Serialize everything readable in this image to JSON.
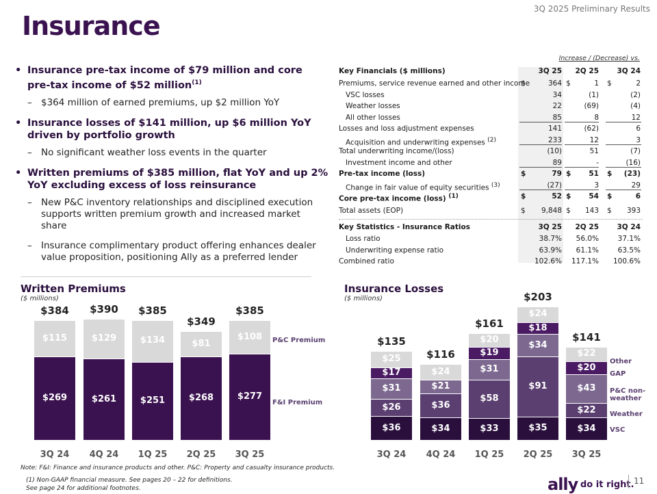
{
  "header": {
    "results_label": "3Q 2025 Preliminary Results",
    "title": "Insurance"
  },
  "bullets": [
    {
      "text": "Insurance pre-tax income of $79 million and core pre-tax income of $52 million",
      "sup": "(1)",
      "subs": [
        "$364 million of earned premiums, up $2 million YoY"
      ]
    },
    {
      "text": "Insurance losses of $141 million, up $6 million YoY driven by portfolio growth",
      "sup": "",
      "subs": [
        "No significant weather loss events in the quarter"
      ]
    },
    {
      "text": "Written premiums of $385 million, flat YoY and up 2% YoY excluding excess of loss reinsurance",
      "sup": "",
      "subs": [
        "New P&C inventory relationships and disciplined execution supports written premium growth and increased market share",
        "Insurance complimentary product offering enhances dealer value proposition, positioning Ally as a preferred lender"
      ]
    }
  ],
  "table": {
    "inc_label": "Increase / (Decrease) vs.",
    "fin_header": {
      "label": "Key Financials ($ millions)",
      "c1": "3Q 25",
      "c2": "2Q 25",
      "c3": "3Q 24"
    },
    "fin_rows": [
      {
        "label": "Premiums, service revenue earned and other income",
        "c1": "364",
        "c2": "1",
        "c3": "2",
        "cur": true,
        "ind": false,
        "bold": false,
        "sup": ""
      },
      {
        "label": "VSC losses",
        "c1": "34",
        "c2": "(1)",
        "c3": "(2)",
        "cur": false,
        "ind": true,
        "bold": false,
        "sup": ""
      },
      {
        "label": "Weather losses",
        "c1": "22",
        "c2": "(69)",
        "c3": "(4)",
        "cur": false,
        "ind": true,
        "bold": false,
        "sup": ""
      },
      {
        "label": "All other losses",
        "c1": "85",
        "c2": "8",
        "c3": "12",
        "cur": false,
        "ind": true,
        "bold": false,
        "sup": ""
      },
      {
        "label": "Losses and loss adjustment expenses",
        "c1": "141",
        "c2": "(62)",
        "c3": "6",
        "cur": false,
        "ind": false,
        "bold": false,
        "sup": ""
      },
      {
        "label": "Acquisition and underwriting expenses",
        "c1": "233",
        "c2": "12",
        "c3": "3",
        "cur": false,
        "ind": true,
        "bold": false,
        "sup": "(2)"
      },
      {
        "label": "Total underwriting income/(loss)",
        "c1": "(10)",
        "c2": "51",
        "c3": "(7)",
        "cur": false,
        "ind": false,
        "bold": false,
        "sup": ""
      },
      {
        "label": "Investment income and other",
        "c1": "89",
        "c2": "-",
        "c3": "(16)",
        "cur": false,
        "ind": true,
        "bold": false,
        "sup": ""
      },
      {
        "label": "Pre-tax income (loss)",
        "c1": "79",
        "c2": "51",
        "c3": "(23)",
        "cur": true,
        "ind": false,
        "bold": true,
        "sup": ""
      },
      {
        "label": "Change in fair value of equity securities",
        "c1": "(27)",
        "c2": "3",
        "c3": "29",
        "cur": false,
        "ind": true,
        "bold": false,
        "sup": "(3)"
      },
      {
        "label": "Core pre-tax income (loss)",
        "c1": "52",
        "c2": "54",
        "c3": "6",
        "cur": true,
        "ind": false,
        "bold": true,
        "sup": "(1)"
      },
      {
        "label": "Total assets (EOP)",
        "c1": "9,848",
        "c2": "143",
        "c3": "393",
        "cur": true,
        "ind": false,
        "bold": false,
        "sup": ""
      }
    ],
    "stat_header": {
      "label": "Key Statistics - Insurance Ratios",
      "c1": "3Q 25",
      "c2": "2Q 25",
      "c3": "3Q 24"
    },
    "stat_rows": [
      {
        "label": "Loss ratio",
        "c1": "38.7%",
        "c2": "56.0%",
        "c3": "37.1%",
        "ind": true
      },
      {
        "label": "Underwriting expense ratio",
        "c1": "63.9%",
        "c2": "61.1%",
        "c3": "63.5%",
        "ind": true
      },
      {
        "label": "Combined ratio",
        "c1": "102.6%",
        "c2": "117.1%",
        "c3": "100.6%",
        "ind": false
      }
    ],
    "currency_symbol": "$"
  },
  "written": {
    "title": "Written Premiums",
    "subtitle": "($ millions)",
    "legend_pc": "P&C Premium",
    "legend_fi": "F&I Premium"
  },
  "losses": {
    "title": "Insurance Losses",
    "subtitle": "($ millions)",
    "legend": [
      "Other",
      "GAP",
      "P&C non-weather",
      "Weather",
      "VSC"
    ]
  },
  "chart_data": [
    {
      "type": "bar",
      "stacked": true,
      "title": "Written Premiums",
      "ylabel": "($ millions)",
      "categories": [
        "3Q 24",
        "4Q 24",
        "1Q 25",
        "2Q 25",
        "3Q 25"
      ],
      "series": [
        {
          "name": "F&I Premium",
          "values": [
            269,
            261,
            251,
            268,
            277
          ],
          "labels": [
            "$269",
            "$261",
            "$251",
            "$268",
            "$277"
          ],
          "color": "#3b1250"
        },
        {
          "name": "P&C Premium",
          "values": [
            115,
            129,
            134,
            81,
            108
          ],
          "labels": [
            "$115",
            "$129",
            "$134",
            "$81",
            "$108"
          ],
          "color": "#d9d9d9"
        }
      ],
      "totals": [
        "$384",
        "$390",
        "$385",
        "$349",
        "$385"
      ]
    },
    {
      "type": "bar",
      "stacked": true,
      "title": "Insurance Losses",
      "ylabel": "($ millions)",
      "categories": [
        "3Q 24",
        "4Q 24",
        "1Q 25",
        "2Q 25",
        "3Q 25"
      ],
      "series": [
        {
          "name": "VSC",
          "values": [
            36,
            34,
            33,
            35,
            34
          ],
          "labels": [
            "$36",
            "$34",
            "$33",
            "$35",
            "$34"
          ],
          "color": "#2a0f3d"
        },
        {
          "name": "Weather",
          "values": [
            26,
            36,
            58,
            91,
            22
          ],
          "labels": [
            "$26",
            "$36",
            "$58",
            "$91",
            "$22"
          ],
          "color": "#5a3f70"
        },
        {
          "name": "P&C non-weather",
          "values": [
            31,
            21,
            31,
            34,
            43
          ],
          "labels": [
            "$31",
            "$21",
            "$31",
            "$34",
            "$43"
          ],
          "color": "#7d6990"
        },
        {
          "name": "GAP",
          "values": [
            17,
            0,
            19,
            18,
            20
          ],
          "labels": [
            "$17",
            "",
            "$19",
            "$18",
            "$20"
          ],
          "color": "#4a1a63"
        },
        {
          "name": "Other",
          "values": [
            25,
            24,
            20,
            24,
            22
          ],
          "labels": [
            "$25",
            "$24",
            "$20",
            "$24",
            "$22"
          ],
          "color": "#d9d9d9"
        }
      ],
      "totals": [
        "$135",
        "$116",
        "$161",
        "$203",
        "$141"
      ]
    }
  ],
  "footer": {
    "note": "Note: F&I: Finance and insurance products and other. P&C: Property and casualty insurance products.",
    "footnote1": "(1)     Non-GAAP financial measure. See pages 20 – 22 for definitions.",
    "footnote2": "See page 24 for additional footnotes.",
    "logo": "ally",
    "tagline": "do it right.",
    "page_number": "11"
  }
}
